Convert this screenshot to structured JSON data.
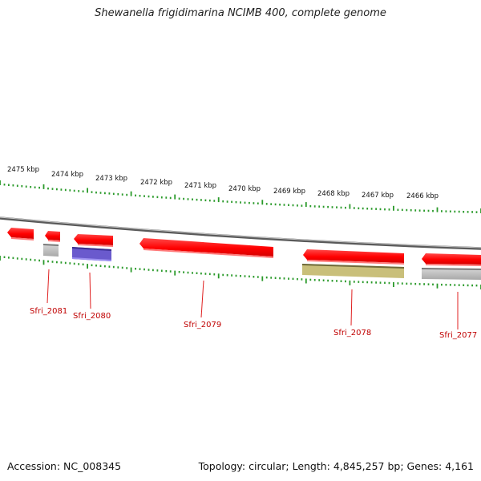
{
  "title": "Shewanella frigidimarina NCIMB 400, complete genome",
  "accession": "Accession: NC_008345",
  "stats": "Topology: circular; Length: 4,845,257 bp; Genes: 4,161",
  "colors": {
    "backbone": "#8a8a8a",
    "ticks": "#2a9a2a",
    "cds": "#ff1a1a",
    "label": "#c00000",
    "gray_feature": "#bcbcbc",
    "blue_feature": "#6a5acd",
    "olive_feature": "#c9bf7a"
  },
  "scale_labels": [
    "2475 kbp",
    "2474 kbp",
    "2473 kbp",
    "2472 kbp",
    "2471 kbp",
    "2470 kbp",
    "2469 kbp",
    "2468 kbp",
    "2467 kbp",
    "2466 kbp"
  ],
  "genes": [
    {
      "label": "Sfri_2081",
      "feature_type": "gray"
    },
    {
      "label": "Sfri_2080",
      "feature_type": "blue"
    },
    {
      "label": "Sfri_2079",
      "feature_type": "none"
    },
    {
      "label": "Sfri_2078",
      "feature_type": "olive"
    },
    {
      "label": "Sfri_2077",
      "feature_type": "gray"
    }
  ]
}
